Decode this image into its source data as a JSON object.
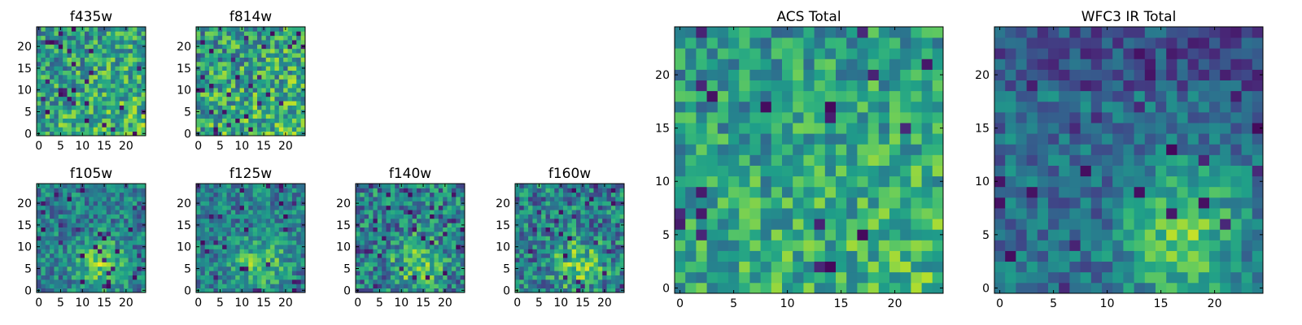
{
  "chart_data": [
    {
      "type": "heatmap",
      "title": "f435w",
      "xticks": [
        "0",
        "5",
        "10",
        "15",
        "20"
      ],
      "yticks": [
        "0",
        "5",
        "10",
        "15",
        "20"
      ],
      "xlim": [
        0,
        25
      ],
      "ylim": [
        0,
        25
      ],
      "grid": false,
      "colormap": "viridis",
      "cell_size": 1,
      "seed": 11,
      "pattern": "noise",
      "contrast": 0.55
    },
    {
      "type": "heatmap",
      "title": "f814w",
      "xticks": [
        "0",
        "5",
        "10",
        "15",
        "20"
      ],
      "yticks": [
        "0",
        "5",
        "10",
        "15",
        "20"
      ],
      "xlim": [
        0,
        25
      ],
      "ylim": [
        0,
        25
      ],
      "grid": false,
      "colormap": "viridis",
      "cell_size": 1,
      "seed": 23,
      "pattern": "noise",
      "contrast": 0.6
    },
    {
      "type": "heatmap",
      "title": "f105w",
      "xticks": [
        "0",
        "5",
        "10",
        "15",
        "20"
      ],
      "yticks": [
        "0",
        "5",
        "10",
        "15",
        "20"
      ],
      "xlim": [
        0,
        25
      ],
      "ylim": [
        0,
        25
      ],
      "grid": false,
      "colormap": "viridis",
      "cell_size": 1,
      "seed": 37,
      "pattern": "blob",
      "contrast": 0.45
    },
    {
      "type": "heatmap",
      "title": "f125w",
      "xticks": [
        "0",
        "5",
        "10",
        "15",
        "20"
      ],
      "yticks": [
        "0",
        "5",
        "10",
        "15",
        "20"
      ],
      "xlim": [
        0,
        25
      ],
      "ylim": [
        0,
        25
      ],
      "grid": false,
      "colormap": "viridis",
      "cell_size": 1,
      "seed": 41,
      "pattern": "blob",
      "contrast": 0.45
    },
    {
      "type": "heatmap",
      "title": "f140w",
      "xticks": [
        "0",
        "5",
        "10",
        "15",
        "20"
      ],
      "yticks": [
        "0",
        "5",
        "10",
        "15",
        "20"
      ],
      "xlim": [
        0,
        25
      ],
      "ylim": [
        0,
        25
      ],
      "grid": false,
      "colormap": "viridis",
      "cell_size": 1,
      "seed": 53,
      "pattern": "blob",
      "contrast": 0.55
    },
    {
      "type": "heatmap",
      "title": "f160w",
      "xticks": [
        "0",
        "5",
        "10",
        "15",
        "20"
      ],
      "yticks": [
        "0",
        "5",
        "10",
        "15",
        "20"
      ],
      "xlim": [
        0,
        25
      ],
      "ylim": [
        0,
        25
      ],
      "grid": false,
      "colormap": "viridis",
      "cell_size": 1,
      "seed": 67,
      "pattern": "blob",
      "contrast": 0.55
    },
    {
      "type": "heatmap",
      "title": "ACS Total",
      "xticks": [
        "0",
        "5",
        "10",
        "15",
        "20"
      ],
      "yticks": [
        "0",
        "5",
        "10",
        "15",
        "20"
      ],
      "xlim": [
        0,
        25
      ],
      "ylim": [
        0,
        25
      ],
      "grid": false,
      "colormap": "viridis",
      "cell_size": 1,
      "seed": 79,
      "pattern": "noise",
      "contrast": 0.45
    },
    {
      "type": "heatmap",
      "title": "WFC3 IR Total",
      "xticks": [
        "0",
        "5",
        "10",
        "15",
        "20"
      ],
      "yticks": [
        "0",
        "5",
        "10",
        "15",
        "20"
      ],
      "xlim": [
        0,
        25
      ],
      "ylim": [
        0,
        25
      ],
      "grid": false,
      "colormap": "viridis",
      "cell_size": 1,
      "seed": 97,
      "pattern": "ir",
      "contrast": 0.35
    }
  ]
}
